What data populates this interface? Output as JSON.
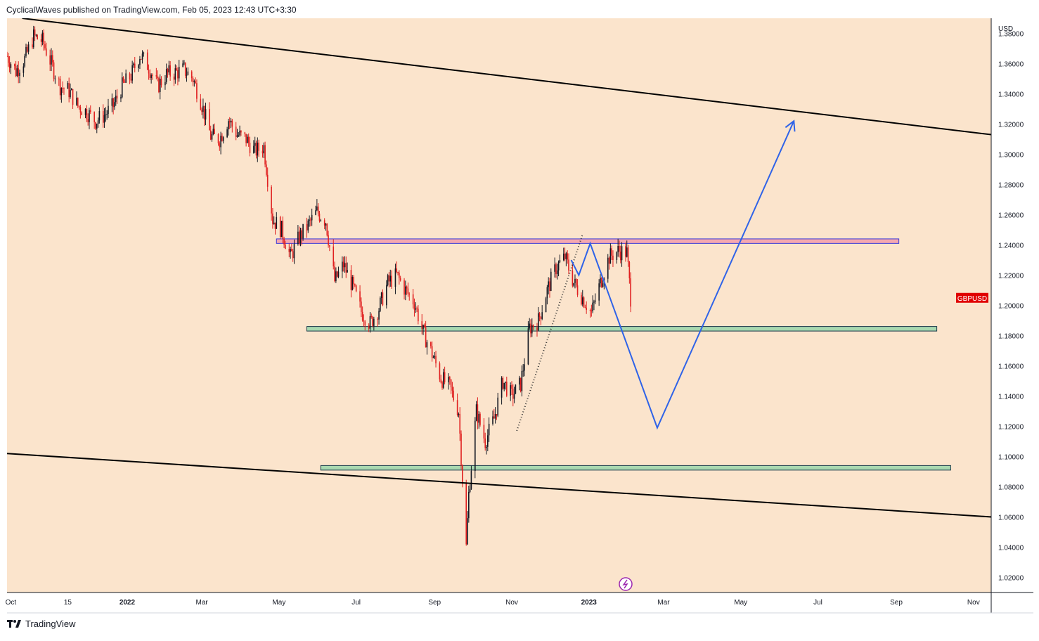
{
  "header": {
    "title": "CyclicalWaves published on TradingView.com, Feb 05, 2023 12:43 UTC+3:30"
  },
  "footer": {
    "brand": "TradingView"
  },
  "chart_data": {
    "type": "candlestick",
    "symbol": "GBPUSD",
    "currency_label": "USD",
    "background_color": "#fbe4cc",
    "up_color": "#131722",
    "down_color": "#e02020",
    "symbol_tag_color": "#e00000",
    "grid": false,
    "y_range": [
      1.01,
      1.39
    ],
    "y_ticks": [
      "1.38000",
      "1.36000",
      "1.34000",
      "1.32000",
      "1.30000",
      "1.28000",
      "1.26000",
      "1.24000",
      "1.22000",
      "1.20000",
      "1.18000",
      "1.16000",
      "1.14000",
      "1.12000",
      "1.10000",
      "1.08000",
      "1.06000",
      "1.04000",
      "1.02000"
    ],
    "x_ticks": [
      "Oct",
      "15",
      "2022",
      "Mar",
      "May",
      "Jul",
      "Sep",
      "Nov",
      "2023",
      "Mar",
      "May",
      "Jul",
      "Sep",
      "Nov"
    ],
    "x_tick_bold": [
      "2022",
      "2023"
    ],
    "x_range": [
      "2021-09-28",
      "2023-11-15"
    ],
    "x_tick_dates": [
      "2021-10-01",
      "2021-11-15",
      "2022-01-01",
      "2022-03-01",
      "2022-05-01",
      "2022-07-01",
      "2022-09-01",
      "2022-11-01",
      "2023-01-01",
      "2023-03-01",
      "2023-05-01",
      "2023-07-01",
      "2023-09-01",
      "2023-11-01"
    ],
    "price_tag": {
      "label": "GBPUSD",
      "value": 1.205
    },
    "price_path": [
      [
        "2021-09-28",
        1.365
      ],
      [
        "2021-10-05",
        1.355
      ],
      [
        "2021-10-12",
        1.363
      ],
      [
        "2021-10-19",
        1.378
      ],
      [
        "2021-10-26",
        1.375
      ],
      [
        "2021-11-02",
        1.36
      ],
      [
        "2021-11-09",
        1.345
      ],
      [
        "2021-11-16",
        1.342
      ],
      [
        "2021-11-23",
        1.332
      ],
      [
        "2021-11-30",
        1.328
      ],
      [
        "2021-12-07",
        1.322
      ],
      [
        "2021-12-14",
        1.326
      ],
      [
        "2021-12-21",
        1.332
      ],
      [
        "2021-12-28",
        1.345
      ],
      [
        "2022-01-04",
        1.352
      ],
      [
        "2022-01-11",
        1.366
      ],
      [
        "2022-01-18",
        1.358
      ],
      [
        "2022-01-25",
        1.345
      ],
      [
        "2022-02-01",
        1.353
      ],
      [
        "2022-02-08",
        1.354
      ],
      [
        "2022-02-15",
        1.356
      ],
      [
        "2022-02-22",
        1.35
      ],
      [
        "2022-03-01",
        1.333
      ],
      [
        "2022-03-08",
        1.312
      ],
      [
        "2022-03-15",
        1.31
      ],
      [
        "2022-03-22",
        1.323
      ],
      [
        "2022-03-29",
        1.313
      ],
      [
        "2022-04-05",
        1.31
      ],
      [
        "2022-04-12",
        1.302
      ],
      [
        "2022-04-19",
        1.305
      ],
      [
        "2022-04-26",
        1.257
      ],
      [
        "2022-05-03",
        1.25
      ],
      [
        "2022-05-10",
        1.232
      ],
      [
        "2022-05-17",
        1.245
      ],
      [
        "2022-05-24",
        1.253
      ],
      [
        "2022-05-31",
        1.262
      ],
      [
        "2022-06-07",
        1.256
      ],
      [
        "2022-06-14",
        1.216
      ],
      [
        "2022-06-21",
        1.227
      ],
      [
        "2022-06-28",
        1.213
      ],
      [
        "2022-07-05",
        1.196
      ],
      [
        "2022-07-12",
        1.188
      ],
      [
        "2022-07-19",
        1.198
      ],
      [
        "2022-07-26",
        1.215
      ],
      [
        "2022-08-02",
        1.22
      ],
      [
        "2022-08-09",
        1.21
      ],
      [
        "2022-08-16",
        1.202
      ],
      [
        "2022-08-23",
        1.182
      ],
      [
        "2022-08-30",
        1.168
      ],
      [
        "2022-09-06",
        1.152
      ],
      [
        "2022-09-13",
        1.146
      ],
      [
        "2022-09-20",
        1.13
      ],
      [
        "2022-09-26",
        1.04
      ],
      [
        "2022-09-28",
        1.075
      ],
      [
        "2022-10-04",
        1.13
      ],
      [
        "2022-10-11",
        1.11
      ],
      [
        "2022-10-18",
        1.125
      ],
      [
        "2022-10-25",
        1.15
      ],
      [
        "2022-11-01",
        1.14
      ],
      [
        "2022-11-08",
        1.148
      ],
      [
        "2022-11-15",
        1.185
      ],
      [
        "2022-11-22",
        1.19
      ],
      [
        "2022-11-29",
        1.21
      ],
      [
        "2022-12-06",
        1.225
      ],
      [
        "2022-12-13",
        1.232
      ],
      [
        "2022-12-20",
        1.215
      ],
      [
        "2022-12-27",
        1.205
      ],
      [
        "2023-01-03",
        1.195
      ],
      [
        "2023-01-10",
        1.215
      ],
      [
        "2023-01-17",
        1.232
      ],
      [
        "2023-01-24",
        1.236
      ],
      [
        "2023-01-31",
        1.235
      ],
      [
        "2023-02-03",
        1.205
      ]
    ],
    "zones": [
      {
        "name": "resistance-zone",
        "y": [
          1.241,
          1.244
        ],
        "x": [
          "2022-04-29",
          "2023-09-03"
        ],
        "color": "#f4a8b0",
        "border": "#3a38d8"
      },
      {
        "name": "support-zone-upper",
        "y": [
          1.183,
          1.186
        ],
        "x": [
          "2022-05-23",
          "2023-10-03"
        ],
        "color": "#a8d8b0",
        "border": "#1a3a4a"
      },
      {
        "name": "support-zone-lower",
        "y": [
          1.091,
          1.094
        ],
        "x": [
          "2022-06-03",
          "2023-10-14"
        ],
        "color": "#a8d8b0",
        "border": "#1a3a4a"
      }
    ],
    "trendlines": [
      {
        "name": "upper-channel-line",
        "points": [
          [
            "2021-10-10",
            1.39
          ],
          [
            "2023-11-15",
            1.313
          ]
        ],
        "color": "#000000"
      },
      {
        "name": "lower-channel-line",
        "points": [
          [
            "2021-09-28",
            1.102
          ],
          [
            "2023-11-15",
            1.06
          ]
        ],
        "color": "#000000"
      }
    ],
    "projection": {
      "color": "#2f63e8",
      "points": [
        [
          "2022-12-18",
          1.23
        ],
        [
          "2022-12-24",
          1.22
        ],
        [
          "2023-01-02",
          1.241
        ],
        [
          "2023-02-24",
          1.119
        ],
        [
          "2023-06-12",
          1.322
        ]
      ]
    },
    "dotted_line": {
      "points": [
        [
          "2022-11-05",
          1.117
        ],
        [
          "2022-12-27",
          1.247
        ]
      ],
      "color": "#333333"
    }
  }
}
